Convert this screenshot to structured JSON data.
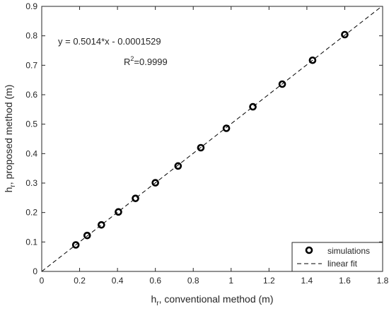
{
  "chart_data": {
    "type": "scatter",
    "xlim": [
      0,
      1.8
    ],
    "ylim": [
      0,
      0.9
    ],
    "xticks": [
      0,
      0.2,
      0.4,
      0.6,
      0.8,
      1,
      1.2,
      1.4,
      1.6,
      1.8
    ],
    "yticks": [
      0,
      0.1,
      0.2,
      0.3,
      0.4,
      0.5,
      0.6,
      0.7,
      0.8,
      0.9
    ],
    "grid": false,
    "xlabel": {
      "main": "h",
      "sub": "r",
      "rest": ", conventional method (m)"
    },
    "ylabel": {
      "main": "h",
      "sub": "r",
      "rest": ", proposed method (m)"
    },
    "annotations": {
      "equation": "y = 0.5014*x - 0.0001529",
      "r2_prefix": "R",
      "r2_sup": "2",
      "r2_value": "=0.9999"
    },
    "series": [
      {
        "name": "simulations",
        "marker": "circle",
        "color": "#000000",
        "x": [
          0.18,
          0.24,
          0.315,
          0.405,
          0.495,
          0.6,
          0.72,
          0.84,
          0.975,
          1.115,
          1.27,
          1.43,
          1.6
        ],
        "y": [
          0.09,
          0.122,
          0.158,
          0.202,
          0.248,
          0.301,
          0.358,
          0.42,
          0.486,
          0.559,
          0.636,
          0.717,
          0.804
        ]
      },
      {
        "name": "linear fit",
        "line": "dashed",
        "color": "#000000",
        "slope": 0.5014,
        "intercept": -0.0001529
      }
    ],
    "legend": {
      "position": "bottom-right"
    }
  }
}
